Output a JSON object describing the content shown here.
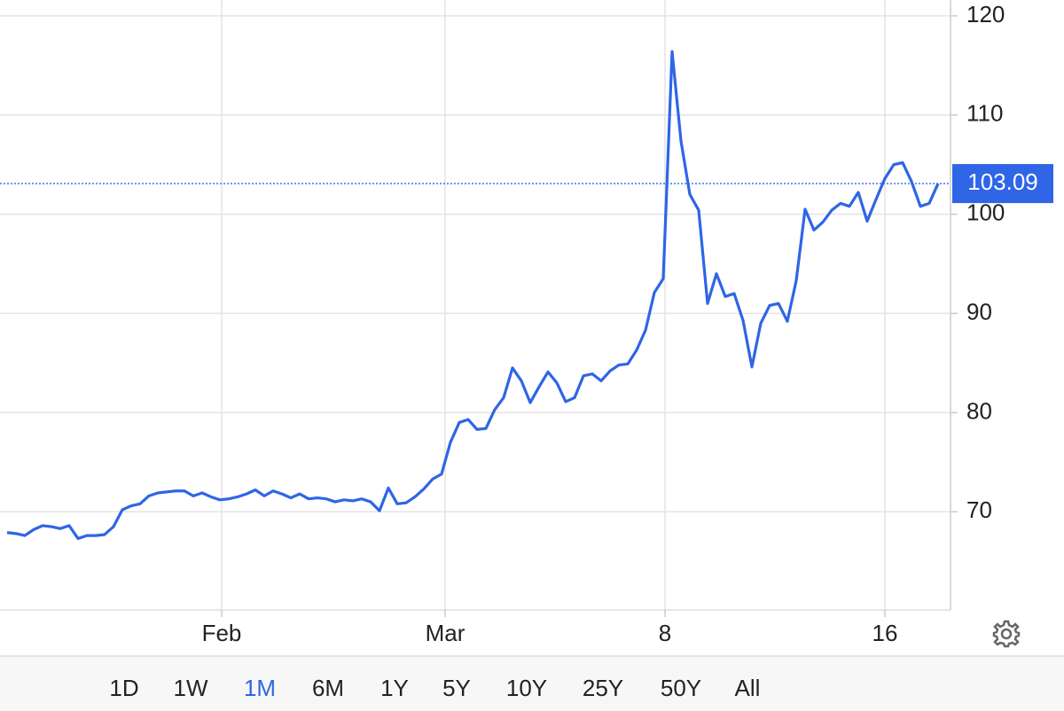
{
  "chart_data": {
    "type": "line",
    "series": [
      {
        "color": "#2f65e6",
        "values": [
          67.9,
          67.8,
          67.6,
          68.2,
          68.6,
          68.5,
          68.3,
          68.6,
          67.3,
          67.6,
          67.6,
          67.7,
          68.5,
          70.2,
          70.6,
          70.8,
          71.6,
          71.9,
          72.0,
          72.1,
          72.1,
          71.6,
          71.9,
          71.5,
          71.2,
          71.3,
          71.5,
          71.8,
          72.2,
          71.6,
          72.1,
          71.8,
          71.4,
          71.8,
          71.3,
          71.4,
          71.3,
          71.0,
          71.2,
          71.1,
          71.3,
          71.0,
          70.1,
          72.4,
          70.8,
          70.9,
          71.5,
          72.3,
          73.3,
          73.8,
          77.0,
          79.0,
          79.3,
          78.3,
          78.4,
          80.3,
          81.5,
          84.5,
          83.2,
          81.0,
          82.6,
          84.1,
          83.0,
          81.1,
          81.5,
          83.7,
          83.9,
          83.2,
          84.2,
          84.8,
          84.9,
          86.3,
          88.3,
          92.1,
          93.5,
          116.4,
          107.4,
          102.0,
          100.4,
          91.0,
          94.0,
          91.7,
          92.0,
          89.3,
          84.6,
          89.0,
          90.8,
          91.0,
          89.2,
          93.3,
          100.5,
          98.4,
          99.2,
          100.4,
          101.1,
          100.8,
          102.2,
          99.3,
          101.5,
          103.6,
          105.0,
          105.2,
          103.3,
          100.8,
          101.1,
          103.09
        ]
      }
    ],
    "xlim": [
      0,
      106.4
    ],
    "xticks": [
      {
        "value": 24.2,
        "label": "Feb"
      },
      {
        "value": 49.4,
        "label": "Mar"
      },
      {
        "value": 74.2,
        "label": "8"
      },
      {
        "value": 99.0,
        "label": "16"
      }
    ],
    "ylim": [
      60.1,
      121.6
    ],
    "yticks": [
      70,
      80,
      90,
      100,
      110,
      120
    ],
    "grid": true,
    "last_price": 103.09
  },
  "range_buttons": {
    "labels": [
      "1D",
      "1W",
      "1M",
      "6M",
      "1Y",
      "5Y",
      "10Y",
      "25Y",
      "50Y",
      "All"
    ],
    "selected_index": 2
  }
}
